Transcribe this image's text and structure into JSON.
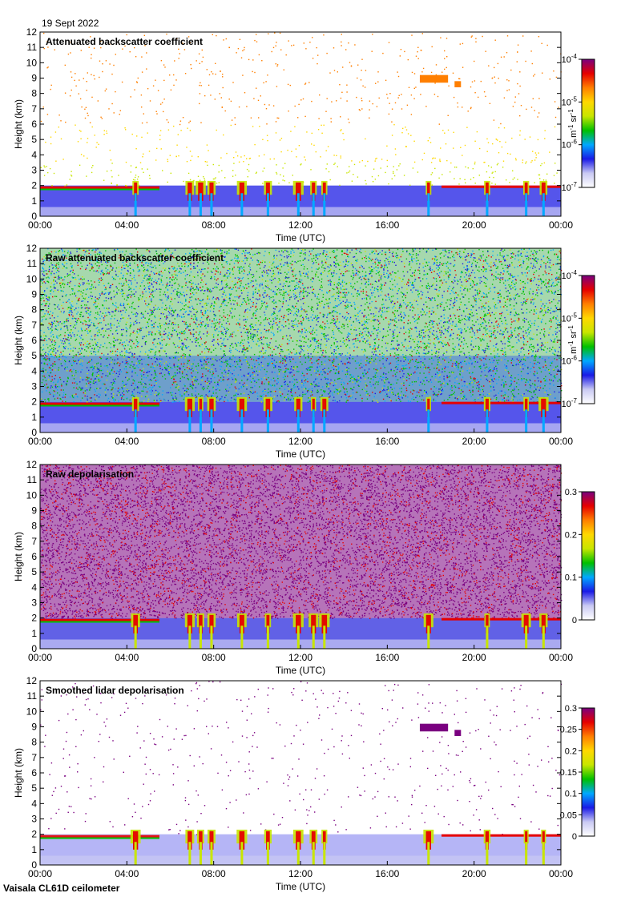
{
  "header": {
    "date": "19 Sept 2022"
  },
  "footer": {
    "instrument": "Vaisala CL61D ceilometer"
  },
  "colors": {
    "rainbow": [
      "#ffffff",
      "#c9c9f3",
      "#1a1ae6",
      "#00a8ff",
      "#00c000",
      "#c8e600",
      "#ffd800",
      "#ff7f00",
      "#e60000",
      "#7a0080"
    ]
  },
  "chart_data": [
    {
      "type": "heatmap",
      "title": "Attenuated backscatter coefficient",
      "xlabel": "Time (UTC)",
      "ylabel": "Height (km)",
      "x_ticks": [
        "00:00",
        "04:00",
        "08:00",
        "12:00",
        "16:00",
        "20:00",
        "00:00"
      ],
      "y_ticks": [
        "0",
        "1",
        "2",
        "3",
        "4",
        "5",
        "6",
        "7",
        "8",
        "9",
        "10",
        "11",
        "12"
      ],
      "ylim": [
        0,
        12
      ],
      "colorbar": {
        "scale": "log",
        "range": [
          1e-07,
          0.0001
        ],
        "label": "m-1 sr-1",
        "ticks": [
          "10-4",
          "10-5",
          "10-6",
          "10-7"
        ]
      }
    },
    {
      "type": "heatmap",
      "title": "Raw attenuated backscatter coefficient",
      "xlabel": "Time (UTC)",
      "ylabel": "Height (km)",
      "x_ticks": [
        "00:00",
        "04:00",
        "08:00",
        "12:00",
        "16:00",
        "20:00",
        "00:00"
      ],
      "y_ticks": [
        "0",
        "1",
        "2",
        "3",
        "4",
        "5",
        "6",
        "7",
        "8",
        "9",
        "10",
        "11",
        "12"
      ],
      "ylim": [
        0,
        12
      ],
      "colorbar": {
        "scale": "log",
        "range": [
          1e-07,
          0.0001
        ],
        "label": "m-1 sr-1",
        "ticks": [
          "10-4",
          "10-5",
          "10-6",
          "10-7"
        ]
      }
    },
    {
      "type": "heatmap",
      "title": "Raw depolarisation",
      "xlabel": "Time (UTC)",
      "ylabel": "Height (km)",
      "x_ticks": [
        "00:00",
        "04:00",
        "08:00",
        "12:00",
        "16:00",
        "20:00",
        "00:00"
      ],
      "y_ticks": [
        "0",
        "1",
        "2",
        "3",
        "4",
        "5",
        "6",
        "7",
        "8",
        "9",
        "10",
        "11",
        "12"
      ],
      "ylim": [
        0,
        12
      ],
      "colorbar": {
        "scale": "linear",
        "range": [
          0,
          0.3
        ],
        "label": "",
        "ticks": [
          "0.3",
          "0.2",
          "0.1",
          "0"
        ]
      }
    },
    {
      "type": "heatmap",
      "title": "Smoothed lidar depolarisation",
      "xlabel": "Time (UTC)",
      "ylabel": "Height (km)",
      "x_ticks": [
        "00:00",
        "04:00",
        "08:00",
        "12:00",
        "16:00",
        "20:00",
        "00:00"
      ],
      "y_ticks": [
        "0",
        "1",
        "2",
        "3",
        "4",
        "5",
        "6",
        "7",
        "8",
        "9",
        "10",
        "11",
        "12"
      ],
      "ylim": [
        0,
        12
      ],
      "colorbar": {
        "scale": "linear",
        "range": [
          0,
          0.3
        ],
        "label": "",
        "ticks": [
          "0.3",
          "0.25",
          "0.2",
          "0.15",
          "0.1",
          "0.05",
          "0"
        ]
      }
    }
  ]
}
